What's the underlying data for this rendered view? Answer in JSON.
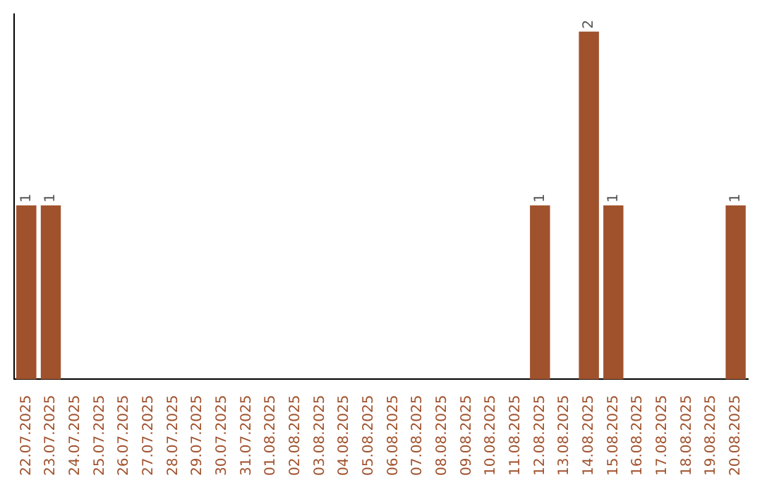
{
  "chart_data": {
    "type": "bar",
    "categories": [
      "22.07.2025",
      "23.07.2025",
      "24.07.2025",
      "25.07.2025",
      "26.07.2025",
      "27.07.2025",
      "28.07.2025",
      "29.07.2025",
      "30.07.2025",
      "31.07.2025",
      "01.08.2025",
      "02.08.2025",
      "03.08.2025",
      "04.08.2025",
      "05.08.2025",
      "06.08.2025",
      "07.08.2025",
      "08.08.2025",
      "09.08.2025",
      "10.08.2025",
      "11.08.2025",
      "12.08.2025",
      "13.08.2025",
      "14.08.2025",
      "15.08.2025",
      "16.08.2025",
      "17.08.2025",
      "18.08.2025",
      "19.08.2025",
      "20.08.2025"
    ],
    "values": [
      1,
      1,
      0,
      0,
      0,
      0,
      0,
      0,
      0,
      0,
      0,
      0,
      0,
      0,
      0,
      0,
      0,
      0,
      0,
      0,
      0,
      1,
      0,
      2,
      1,
      0,
      0,
      0,
      0,
      1
    ],
    "value_labels": [
      "1",
      "1",
      null,
      null,
      null,
      null,
      null,
      null,
      null,
      null,
      null,
      null,
      null,
      null,
      null,
      null,
      null,
      null,
      null,
      null,
      null,
      "1",
      null,
      "2",
      "1",
      null,
      null,
      null,
      null,
      "1"
    ],
    "color": "#a0522d",
    "ylim": [
      0,
      2.1
    ],
    "tick_labels": "x",
    "grid": false,
    "legend": false
  }
}
